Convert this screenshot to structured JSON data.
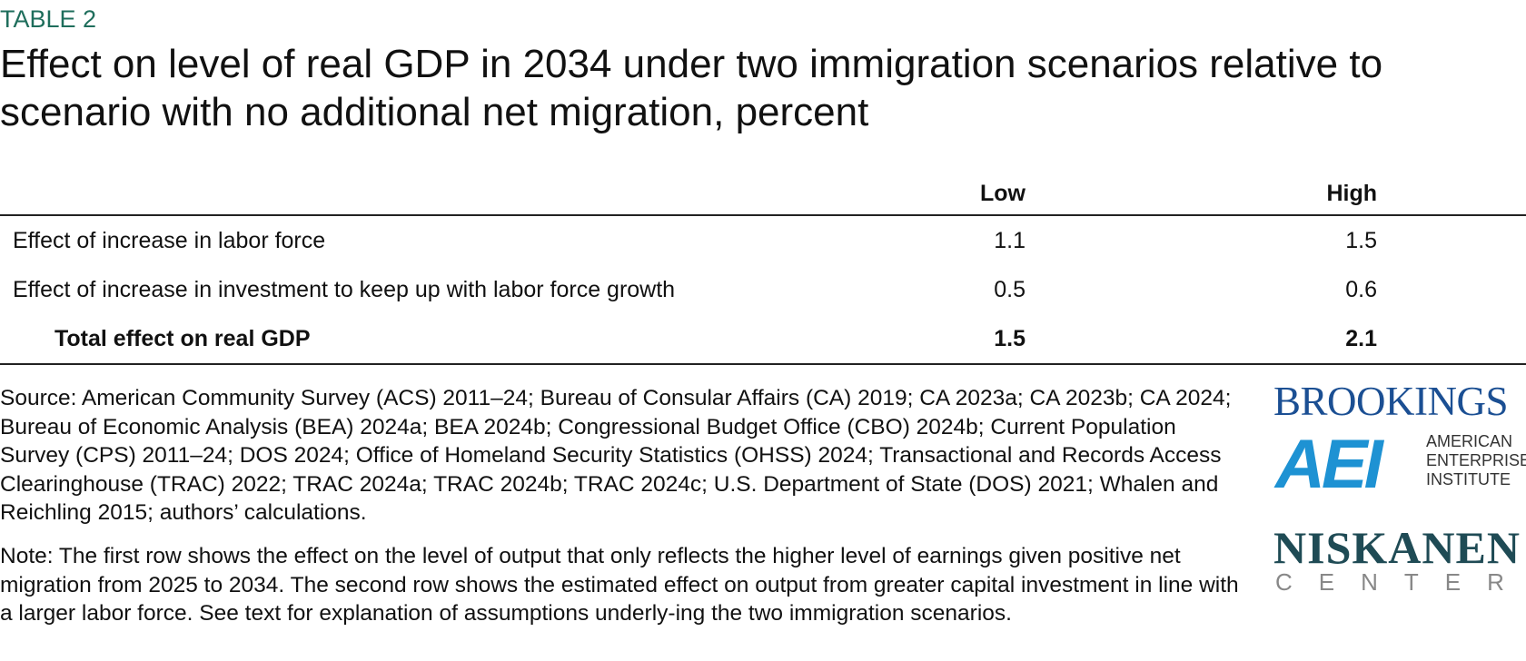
{
  "header": {
    "label": "TABLE 2",
    "title": "Effect on level of real GDP in 2034 under two immigration scenarios relative to scenario with no additional net migration, percent"
  },
  "table": {
    "columns": [
      "Low",
      "High"
    ],
    "rows": [
      [
        "Effect of increase in labor force",
        1.1,
        1.5
      ],
      [
        "Effect of increase in investment to keep up with labor force growth",
        0.5,
        0.6
      ],
      [
        "Total effect on real GDP",
        1.5,
        2.1
      ]
    ]
  },
  "source": "Source: American Community Survey (ACS) 2011–24; Bureau of Consular Affairs (CA) 2019; CA 2023a; CA 2023b; CA 2024; Bureau of Economic Analysis (BEA) 2024a; BEA 2024b; Congressional Budget Office (CBO) 2024b; Current Population Survey (CPS) 2011–24; DOS 2024; Office of Homeland Security Statistics (OHSS) 2024; Transactional and Records Access Clearinghouse (TRAC) 2022; TRAC 2024a; TRAC 2024b; TRAC 2024c; U.S. Department of State (DOS) 2021; Whalen and Reichling 2015; authors’ calculations.",
  "note": "Note: The first row shows the effect on the level of output that only reflects the higher level of earnings given positive net migration from 2025 to 2034. The second row shows the estimated effect on output from greater capital investment in line with a larger labor force. See text for explanation of assumptions underly-ing the two immigration scenarios.",
  "logos": {
    "brookings": "BROOKINGS",
    "aei": "AEI",
    "aei_name": [
      "AMERICAN",
      "ENTERPRISE",
      "INSTITUTE"
    ],
    "niskanen": "NISKANEN",
    "niskanen_sub": "CENTER"
  }
}
